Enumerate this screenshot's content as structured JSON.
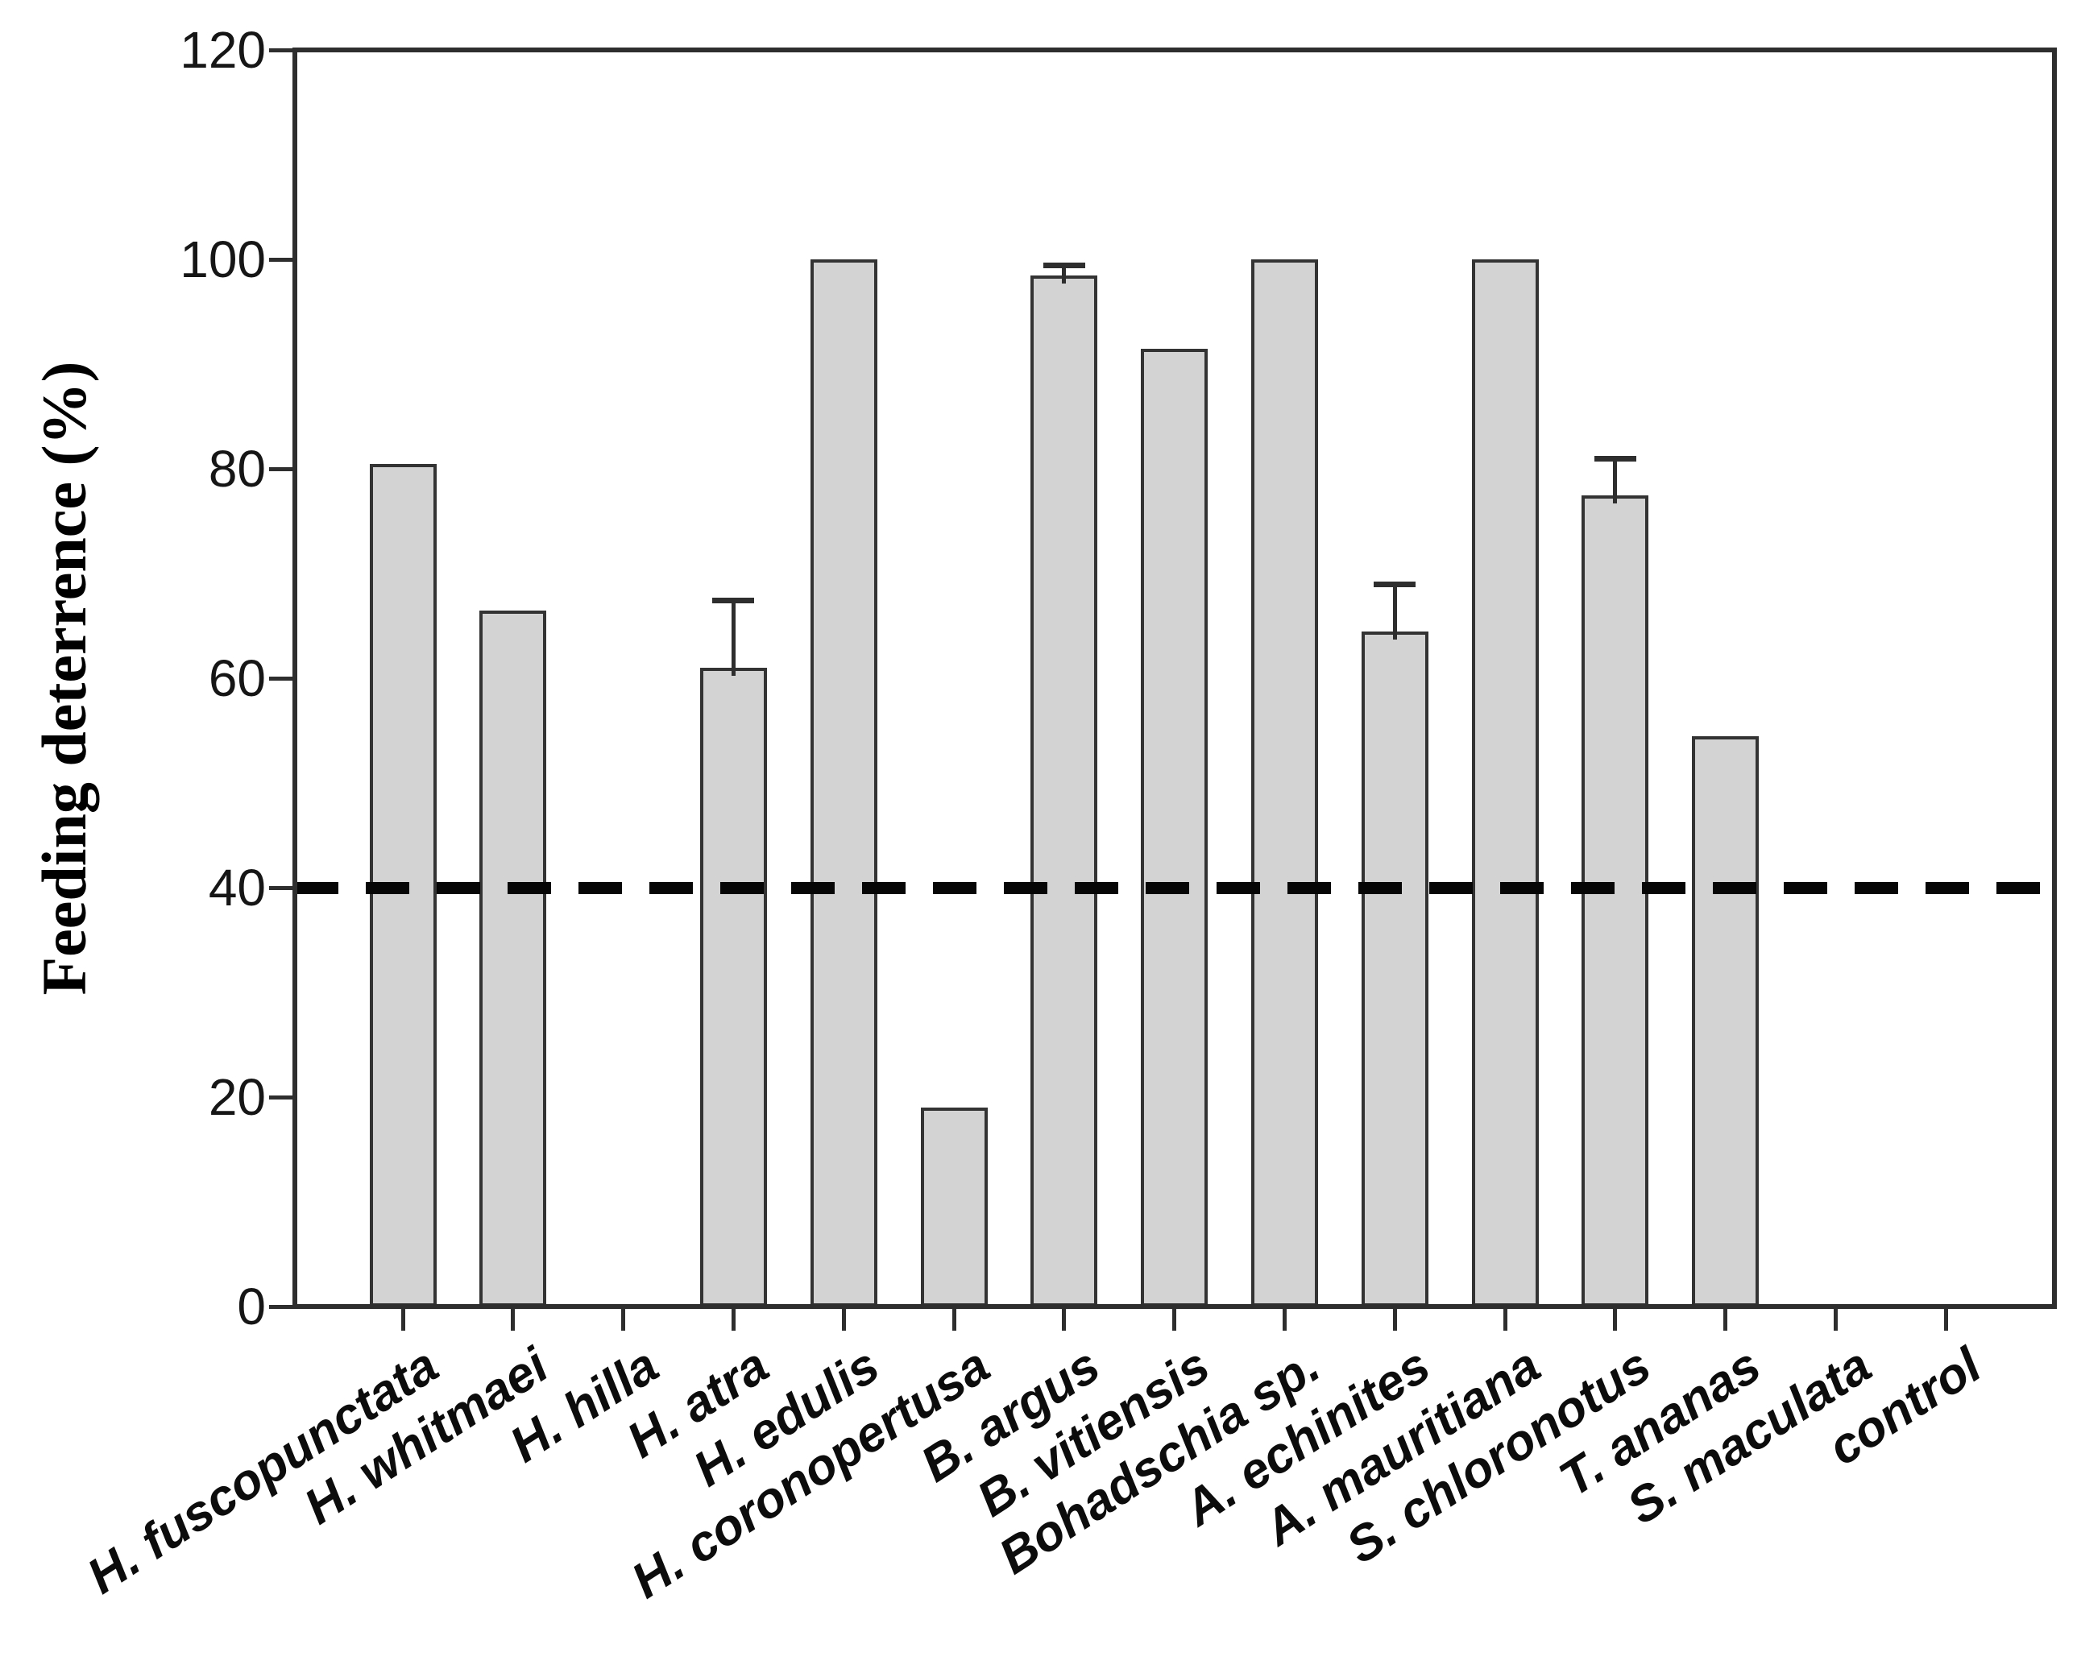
{
  "figure": {
    "background_color": "#ffffff"
  },
  "chart_data": {
    "type": "bar",
    "title": "",
    "xlabel": "",
    "ylabel": "Feeding deterrence (%)",
    "ylim": [
      0,
      120
    ],
    "yticks": [
      0,
      20,
      40,
      60,
      80,
      100,
      120
    ],
    "grid": false,
    "legend": null,
    "bar_fill_color": "#d3d3d3",
    "bar_edge_color": "#333333",
    "axis_color": "#2e2e2e",
    "text_color": "#0c0c0c",
    "reference_line": {
      "value": 40,
      "style": "dashed",
      "color": "#060606"
    },
    "categories": [
      "H. fuscopunctata",
      "H. whitmaei",
      "H. hilla",
      "H. atra",
      "H. edulis",
      "H. coronopertusa",
      "B. argus",
      "B. vitiensis",
      "Bohadschia sp.",
      "A. echinites",
      "A. mauritiana",
      "S. chloronotus",
      "T. ananas",
      "S. maculata",
      "control"
    ],
    "values": [
      80.5,
      66.5,
      0,
      61,
      100,
      19,
      98.5,
      91.5,
      100,
      64.5,
      100,
      77.5,
      54.5,
      0,
      0
    ],
    "errors": [
      0,
      0,
      0,
      6.5,
      0,
      0,
      1,
      0,
      0,
      4.5,
      0,
      3.5,
      0,
      0,
      0
    ]
  }
}
